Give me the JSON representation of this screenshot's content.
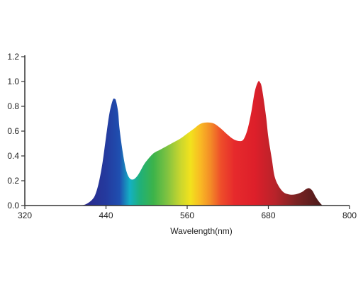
{
  "chart_data": {
    "type": "area",
    "title": "",
    "xlabel": "Wavelength(nm)",
    "ylabel": "",
    "xlim": [
      320,
      800
    ],
    "ylim": [
      0,
      1.2
    ],
    "grid": false,
    "x_ticks": [
      320,
      440,
      560,
      680,
      800
    ],
    "y_ticks": [
      0.0,
      0.2,
      0.4,
      0.6,
      0.8,
      1.0,
      1.2
    ],
    "x_tick_labels": [
      "320",
      "440",
      "560",
      "680",
      "800"
    ],
    "y_tick_labels": [
      "0.0",
      "0.2",
      "0.4",
      "0.6",
      "0.8",
      "1.0",
      "1.2"
    ],
    "fill": "spectral gradient by wavelength",
    "series": [
      {
        "x": [
          400,
          410,
          420,
          425,
          430,
          435,
          440,
          445,
          450,
          453,
          455,
          458,
          460,
          465,
          470,
          475,
          480,
          485,
          490,
          495,
          500,
          510,
          520,
          530,
          540,
          550,
          560,
          570,
          580,
          590,
          600,
          610,
          620,
          630,
          640,
          645,
          650,
          655,
          660,
          665,
          668,
          670,
          673,
          677,
          680,
          685,
          690,
          700,
          710,
          720,
          730,
          735,
          740,
          745,
          750,
          755,
          760
        ],
        "y": [
          0.0,
          0.01,
          0.05,
          0.1,
          0.2,
          0.35,
          0.55,
          0.74,
          0.85,
          0.86,
          0.84,
          0.75,
          0.62,
          0.42,
          0.28,
          0.22,
          0.21,
          0.23,
          0.27,
          0.32,
          0.36,
          0.42,
          0.45,
          0.48,
          0.51,
          0.54,
          0.58,
          0.62,
          0.66,
          0.67,
          0.66,
          0.62,
          0.57,
          0.53,
          0.52,
          0.55,
          0.63,
          0.76,
          0.92,
          1.0,
          0.99,
          0.96,
          0.86,
          0.7,
          0.55,
          0.38,
          0.22,
          0.12,
          0.09,
          0.09,
          0.11,
          0.13,
          0.14,
          0.12,
          0.07,
          0.03,
          0.0
        ]
      }
    ],
    "colors": {
      "axis": "#333333",
      "text": "#222222"
    },
    "spectrum_stops": [
      {
        "nm": 410,
        "color": "#2a2a8c"
      },
      {
        "nm": 440,
        "color": "#243a9e"
      },
      {
        "nm": 460,
        "color": "#1f4fb0"
      },
      {
        "nm": 475,
        "color": "#14b0c4"
      },
      {
        "nm": 490,
        "color": "#1fb07a"
      },
      {
        "nm": 510,
        "color": "#3cb34a"
      },
      {
        "nm": 530,
        "color": "#7ec241"
      },
      {
        "nm": 550,
        "color": "#c9d62e"
      },
      {
        "nm": 565,
        "color": "#f2e21d"
      },
      {
        "nm": 580,
        "color": "#f9b824"
      },
      {
        "nm": 595,
        "color": "#f38a27"
      },
      {
        "nm": 610,
        "color": "#ee4d2a"
      },
      {
        "nm": 630,
        "color": "#e62a2c"
      },
      {
        "nm": 660,
        "color": "#dd1f2a"
      },
      {
        "nm": 690,
        "color": "#b8232a"
      },
      {
        "nm": 720,
        "color": "#7d2323"
      },
      {
        "nm": 760,
        "color": "#4a1a1a"
      }
    ]
  }
}
